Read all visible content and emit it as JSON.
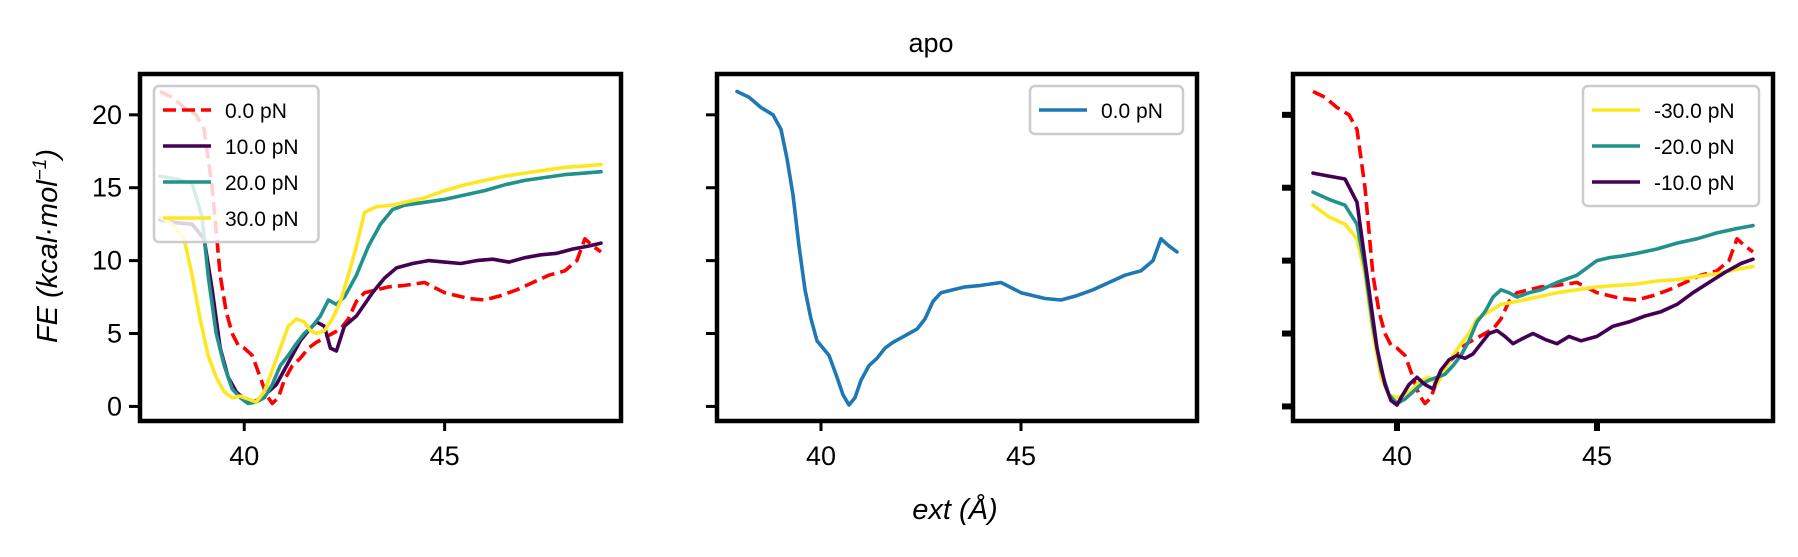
{
  "figure": {
    "suptitle": "apo",
    "xlabel": "ext (Å)",
    "ylabel": "FE (kcal·mol⁻¹)"
  },
  "chart_data": [
    {
      "type": "line",
      "title": "",
      "xlim": [
        37.4,
        49.4
      ],
      "ylim": [
        -1.0,
        22.8
      ],
      "xticks": [
        40,
        45
      ],
      "yticks": [
        0,
        5,
        10,
        15,
        20
      ],
      "ytick_labels_visible": true,
      "legend": {
        "position": "top-left"
      },
      "series": [
        {
          "name": "0.0 pN",
          "color": "#ff0000",
          "dash": true,
          "x": [
            37.9,
            38.2,
            38.5,
            38.8,
            39.0,
            39.2,
            39.4,
            39.55,
            39.7,
            39.85,
            40.0,
            40.2,
            40.4,
            40.55,
            40.7,
            40.85,
            41.0,
            41.2,
            41.4,
            41.6,
            41.8,
            42.0,
            42.2,
            42.4,
            42.6,
            42.8,
            43.0,
            43.3,
            43.6,
            44.0,
            44.5,
            45.0,
            45.3,
            45.6,
            46.0,
            46.4,
            46.8,
            47.2,
            47.6,
            48.0,
            48.3,
            48.5,
            48.7,
            48.9
          ],
          "y": [
            21.6,
            21.2,
            20.5,
            20.0,
            19.0,
            15.0,
            9.0,
            6.5,
            5.0,
            4.2,
            4.0,
            3.5,
            2.0,
            0.8,
            0.2,
            0.6,
            1.8,
            2.8,
            3.3,
            4.0,
            4.4,
            4.7,
            5.0,
            5.3,
            6.0,
            7.2,
            7.8,
            8.0,
            8.2,
            8.3,
            8.5,
            7.8,
            7.6,
            7.4,
            7.3,
            7.6,
            8.0,
            8.5,
            9.0,
            9.3,
            10.0,
            11.5,
            11.0,
            10.6
          ]
        },
        {
          "name": "10.0 pN",
          "color": "#440154",
          "dash": false,
          "x": [
            37.9,
            38.3,
            38.7,
            39.0,
            39.2,
            39.4,
            39.6,
            39.8,
            40.0,
            40.2,
            40.4,
            40.6,
            40.8,
            41.0,
            41.2,
            41.4,
            41.6,
            41.8,
            42.0,
            42.15,
            42.3,
            42.5,
            42.8,
            43.0,
            43.2,
            43.5,
            43.8,
            44.2,
            44.6,
            45.0,
            45.4,
            45.8,
            46.2,
            46.6,
            47.0,
            47.4,
            47.8,
            48.2,
            48.6,
            48.9
          ],
          "y": [
            12.8,
            12.6,
            12.5,
            11.5,
            8.0,
            4.0,
            2.0,
            1.0,
            0.5,
            0.3,
            0.5,
            1.0,
            1.5,
            2.5,
            3.5,
            4.5,
            5.2,
            5.8,
            5.5,
            4.0,
            3.8,
            5.5,
            6.2,
            7.0,
            7.8,
            8.8,
            9.5,
            9.8,
            10.0,
            9.9,
            9.8,
            10.0,
            10.1,
            9.9,
            10.2,
            10.4,
            10.5,
            10.8,
            11.0,
            11.2
          ]
        },
        {
          "name": "20.0 pN",
          "color": "#21918c",
          "dash": false,
          "x": [
            37.9,
            38.3,
            38.7,
            38.95,
            39.1,
            39.3,
            39.5,
            39.7,
            39.9,
            40.1,
            40.3,
            40.5,
            40.7,
            40.9,
            41.1,
            41.3,
            41.5,
            41.7,
            41.9,
            42.1,
            42.3,
            42.5,
            42.8,
            43.1,
            43.4,
            43.7,
            44.0,
            44.5,
            45.0,
            45.5,
            46.0,
            46.5,
            47.0,
            47.5,
            48.0,
            48.5,
            48.9
          ],
          "y": [
            15.8,
            15.6,
            15.3,
            13.0,
            9.0,
            5.0,
            2.8,
            1.2,
            0.6,
            0.2,
            0.3,
            0.6,
            1.5,
            2.8,
            3.5,
            4.3,
            5.0,
            5.5,
            6.2,
            7.3,
            7.0,
            7.5,
            9.0,
            11.0,
            12.5,
            13.5,
            13.8,
            14.0,
            14.2,
            14.5,
            14.8,
            15.2,
            15.5,
            15.7,
            15.9,
            16.0,
            16.1
          ]
        },
        {
          "name": "30.0 pN",
          "color": "#fde725",
          "dash": false,
          "x": [
            37.9,
            38.2,
            38.5,
            38.7,
            38.9,
            39.1,
            39.3,
            39.5,
            39.7,
            39.9,
            40.1,
            40.3,
            40.5,
            40.7,
            40.9,
            41.1,
            41.3,
            41.5,
            41.65,
            41.8,
            42.0,
            42.2,
            42.4,
            42.6,
            42.8,
            43.0,
            43.3,
            43.7,
            44.0,
            44.5,
            45.0,
            45.5,
            46.0,
            46.5,
            47.0,
            47.5,
            48.0,
            48.5,
            48.9
          ],
          "y": [
            13.0,
            12.5,
            11.5,
            9.0,
            6.0,
            3.5,
            2.0,
            1.0,
            0.6,
            0.7,
            0.5,
            0.3,
            1.0,
            2.5,
            4.0,
            5.5,
            6.0,
            5.8,
            5.2,
            5.0,
            5.2,
            6.0,
            7.2,
            9.0,
            11.0,
            13.3,
            13.7,
            13.8,
            14.0,
            14.3,
            14.8,
            15.2,
            15.5,
            15.8,
            16.0,
            16.2,
            16.4,
            16.5,
            16.6
          ]
        }
      ]
    },
    {
      "type": "line",
      "title": "",
      "xlim": [
        37.4,
        49.4
      ],
      "ylim": [
        -1.0,
        22.8
      ],
      "xticks": [
        40,
        45
      ],
      "yticks": [
        0,
        5,
        10,
        15,
        20
      ],
      "ytick_labels_visible": false,
      "legend": {
        "position": "top-right"
      },
      "series": [
        {
          "name": "0.0 pN",
          "color": "#1f77b4",
          "dash": false,
          "x": [
            37.9,
            38.2,
            38.5,
            38.8,
            39.0,
            39.15,
            39.3,
            39.45,
            39.6,
            39.75,
            39.9,
            40.05,
            40.2,
            40.4,
            40.55,
            40.7,
            40.85,
            41.0,
            41.2,
            41.4,
            41.6,
            41.8,
            42.0,
            42.2,
            42.4,
            42.6,
            42.8,
            43.0,
            43.3,
            43.6,
            44.0,
            44.5,
            45.0,
            45.3,
            45.6,
            46.0,
            46.4,
            46.8,
            47.2,
            47.6,
            48.0,
            48.3,
            48.5,
            48.7,
            48.9
          ],
          "y": [
            21.6,
            21.2,
            20.5,
            20.0,
            19.0,
            17.0,
            14.5,
            11.0,
            8.0,
            6.0,
            4.5,
            4.0,
            3.5,
            2.0,
            0.8,
            0.1,
            0.6,
            1.8,
            2.8,
            3.3,
            4.0,
            4.4,
            4.7,
            5.0,
            5.3,
            6.0,
            7.2,
            7.8,
            8.0,
            8.2,
            8.3,
            8.5,
            7.8,
            7.6,
            7.4,
            7.3,
            7.6,
            8.0,
            8.5,
            9.0,
            9.3,
            10.0,
            11.5,
            11.0,
            10.6
          ]
        }
      ]
    },
    {
      "type": "line",
      "title": "",
      "xlim": [
        37.4,
        49.4
      ],
      "ylim": [
        -1.0,
        22.8
      ],
      "xticks": [
        40,
        45
      ],
      "yticks": [
        0,
        5,
        10,
        15,
        20
      ],
      "ytick_labels_visible": false,
      "legend": {
        "position": "top-right"
      },
      "series": [
        {
          "name": "",
          "color": "#ff0000",
          "dash": true,
          "x": [
            37.9,
            38.2,
            38.5,
            38.8,
            39.0,
            39.2,
            39.4,
            39.55,
            39.7,
            39.85,
            40.0,
            40.2,
            40.4,
            40.55,
            40.7,
            40.85,
            41.0,
            41.2,
            41.4,
            41.6,
            41.8,
            42.0,
            42.2,
            42.4,
            42.6,
            42.8,
            43.0,
            43.3,
            43.6,
            44.0,
            44.5,
            45.0,
            45.3,
            45.6,
            46.0,
            46.4,
            46.8,
            47.2,
            47.6,
            48.0,
            48.3,
            48.5,
            48.7,
            48.9
          ],
          "y": [
            21.6,
            21.2,
            20.5,
            20.0,
            19.0,
            15.0,
            9.0,
            6.5,
            5.0,
            4.2,
            4.0,
            3.5,
            2.0,
            0.8,
            0.2,
            0.6,
            1.8,
            2.8,
            3.3,
            4.0,
            4.4,
            4.7,
            5.0,
            5.3,
            6.0,
            7.2,
            7.8,
            8.0,
            8.2,
            8.3,
            8.5,
            7.8,
            7.6,
            7.4,
            7.3,
            7.6,
            8.0,
            8.5,
            9.0,
            9.3,
            10.0,
            11.5,
            11.0,
            10.6
          ]
        },
        {
          "name": "-30.0 pN",
          "color": "#fde725",
          "dash": false,
          "x": [
            37.9,
            38.3,
            38.7,
            39.0,
            39.2,
            39.4,
            39.6,
            39.8,
            40.0,
            40.2,
            40.4,
            40.6,
            40.8,
            41.0,
            41.2,
            41.4,
            41.6,
            41.8,
            42.0,
            42.3,
            42.6,
            43.0,
            43.5,
            44.0,
            44.5,
            45.0,
            45.5,
            46.0,
            46.5,
            47.0,
            47.5,
            48.0,
            48.5,
            48.9
          ],
          "y": [
            13.8,
            13.0,
            12.5,
            11.5,
            9.0,
            5.0,
            2.0,
            0.8,
            0.6,
            0.8,
            1.2,
            1.8,
            2.0,
            1.5,
            2.5,
            3.5,
            4.3,
            5.0,
            6.0,
            6.5,
            7.0,
            7.2,
            7.5,
            7.8,
            8.0,
            8.2,
            8.3,
            8.4,
            8.6,
            8.7,
            8.9,
            9.1,
            9.4,
            9.6
          ]
        },
        {
          "name": "-20.0 pN",
          "color": "#21918c",
          "dash": false,
          "x": [
            37.9,
            38.3,
            38.7,
            39.0,
            39.2,
            39.4,
            39.6,
            39.8,
            40.0,
            40.2,
            40.4,
            40.6,
            40.8,
            41.0,
            41.2,
            41.4,
            41.6,
            41.8,
            42.0,
            42.2,
            42.4,
            42.6,
            42.8,
            43.0,
            43.3,
            43.6,
            44.0,
            44.5,
            45.0,
            45.3,
            45.6,
            46.0,
            46.5,
            47.0,
            47.5,
            48.0,
            48.5,
            48.9
          ],
          "y": [
            14.7,
            14.2,
            13.8,
            12.5,
            9.5,
            5.5,
            2.5,
            0.8,
            0.2,
            0.5,
            1.0,
            1.5,
            1.8,
            2.0,
            2.2,
            2.8,
            3.5,
            4.5,
            5.8,
            6.5,
            7.5,
            8.0,
            7.8,
            7.5,
            7.8,
            8.0,
            8.5,
            9.0,
            10.0,
            10.2,
            10.3,
            10.5,
            10.8,
            11.2,
            11.5,
            11.9,
            12.2,
            12.4
          ]
        },
        {
          "name": "-10.0 pN",
          "color": "#440154",
          "dash": false,
          "x": [
            37.9,
            38.3,
            38.7,
            39.0,
            39.15,
            39.3,
            39.5,
            39.7,
            39.85,
            40.0,
            40.1,
            40.3,
            40.5,
            40.7,
            40.9,
            41.1,
            41.3,
            41.5,
            41.7,
            41.9,
            42.1,
            42.3,
            42.5,
            42.7,
            42.9,
            43.1,
            43.4,
            43.7,
            44.0,
            44.3,
            44.6,
            45.0,
            45.4,
            45.8,
            46.2,
            46.6,
            47.0,
            47.4,
            47.8,
            48.2,
            48.6,
            48.9
          ],
          "y": [
            16.0,
            15.8,
            15.6,
            14.0,
            11.0,
            8.0,
            4.0,
            1.5,
            0.4,
            0.1,
            0.6,
            1.5,
            2.0,
            1.5,
            1.2,
            2.5,
            3.2,
            3.5,
            3.3,
            3.6,
            4.3,
            5.0,
            5.2,
            4.8,
            4.3,
            4.6,
            5.0,
            4.6,
            4.3,
            4.8,
            4.5,
            4.8,
            5.5,
            5.8,
            6.2,
            6.5,
            7.0,
            7.8,
            8.5,
            9.2,
            9.8,
            10.1
          ]
        }
      ]
    }
  ]
}
